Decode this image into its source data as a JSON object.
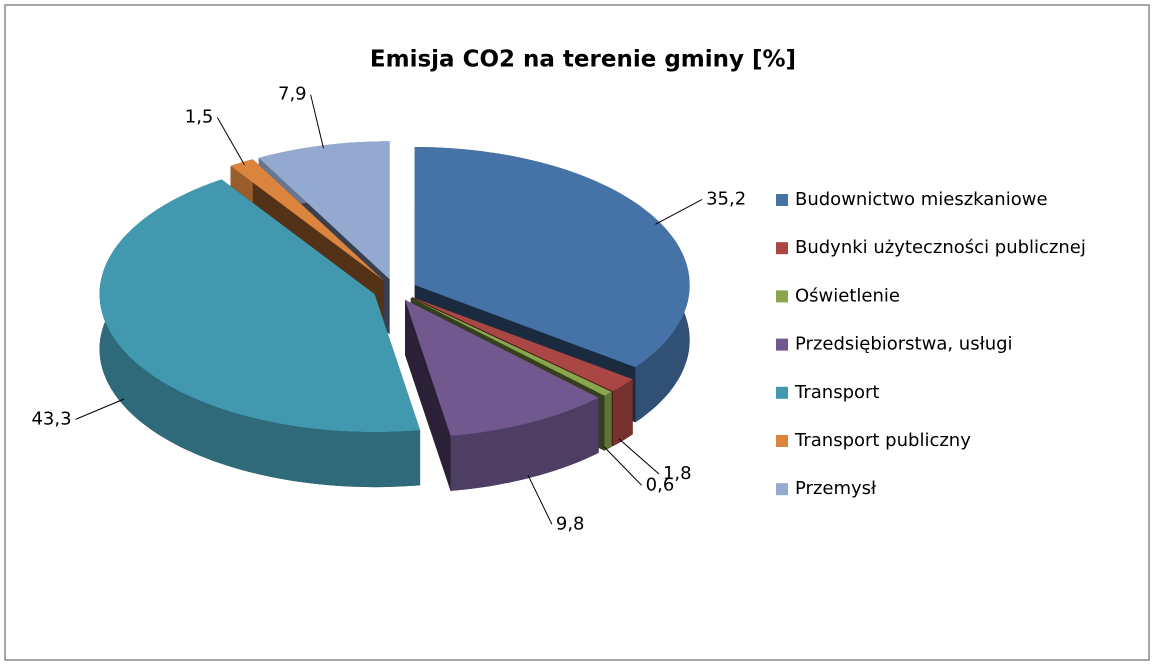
{
  "chart_data": {
    "type": "pie3d",
    "title": "Emisja CO2 na terenie gminy [%]",
    "categories": [
      "Budownictwo mieszkaniowe",
      "Budynki użyteczności publicznej",
      "Oświetlenie",
      "Przedsiębiorstwa, usługi",
      "Transport",
      "Transport publiczny",
      "Przemysł"
    ],
    "values": [
      35.2,
      1.8,
      0.6,
      9.8,
      43.3,
      1.5,
      7.9
    ],
    "value_labels": [
      "35,2",
      "1,8",
      "0,6",
      "9,8",
      "43,3",
      "1,5",
      "7,9"
    ],
    "colors": [
      "#4572a7",
      "#aa4643",
      "#89a54e",
      "#71588f",
      "#4198af",
      "#db843d",
      "#93a9cf"
    ],
    "legend": "right"
  }
}
